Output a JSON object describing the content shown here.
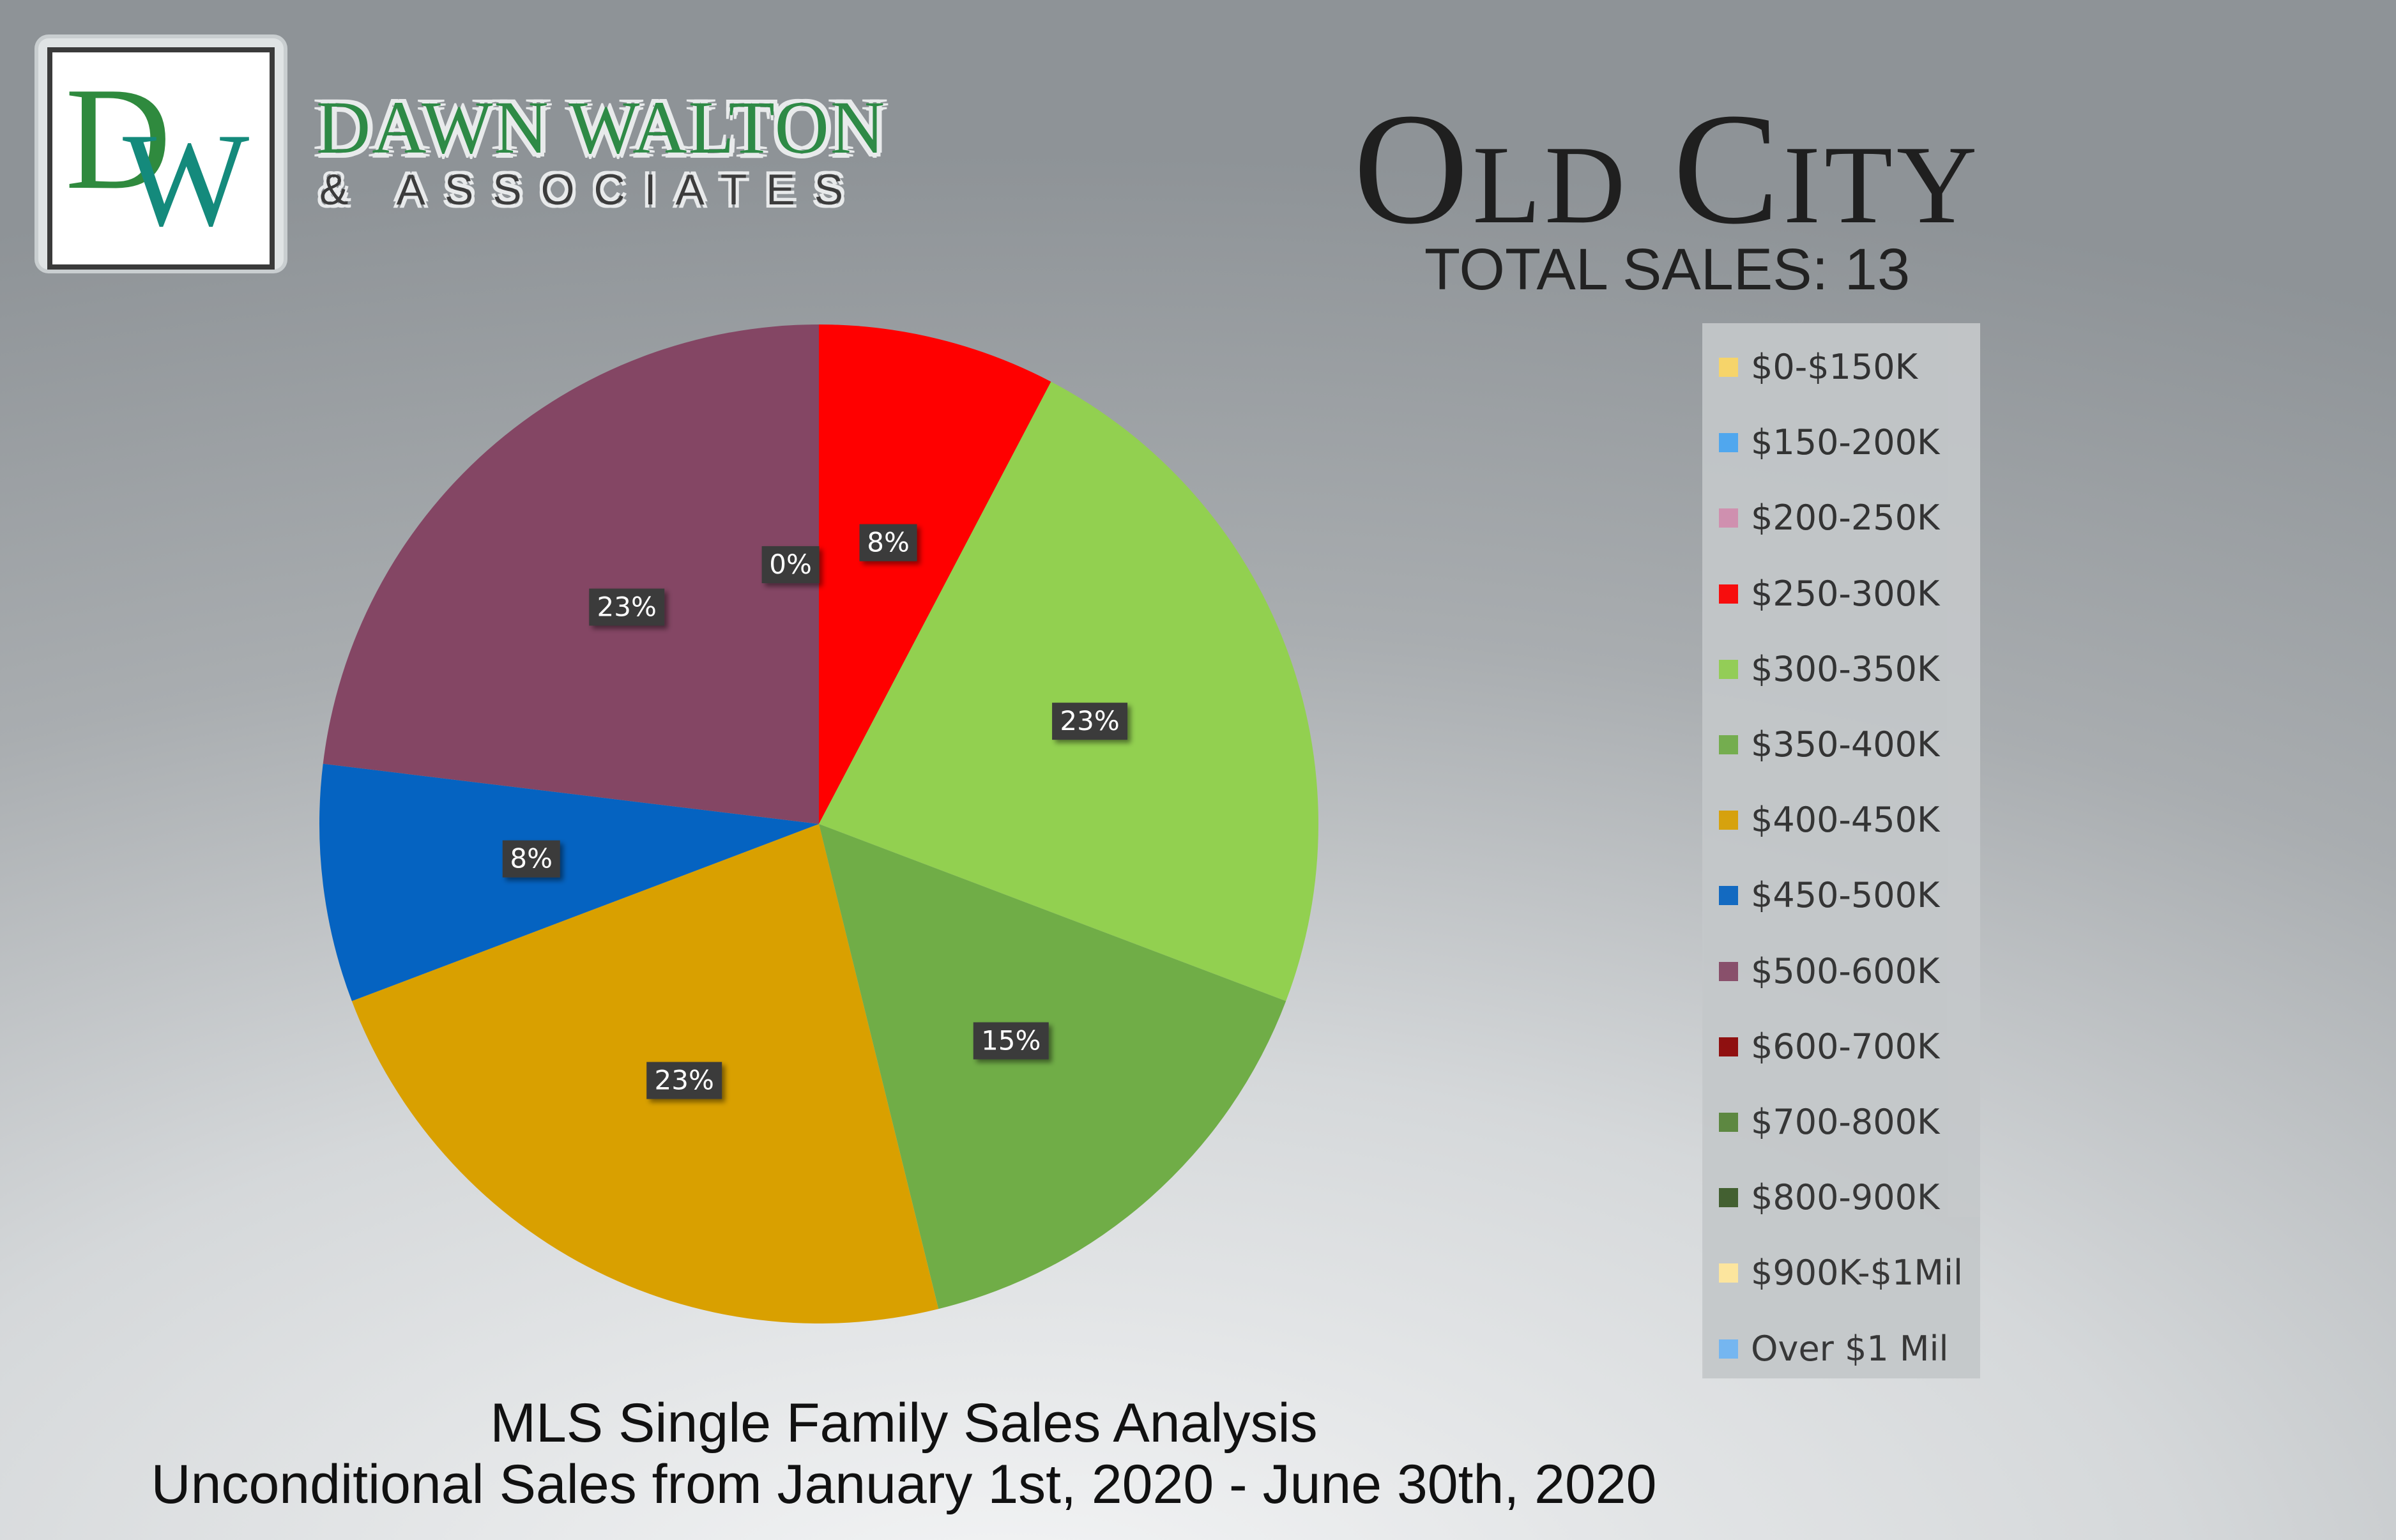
{
  "brand": {
    "logo_letter_1": "D",
    "logo_letter_2": "W",
    "name": "DAWN WALTON",
    "sub": "& ASSOCIATES"
  },
  "header": {
    "title": "Old City",
    "total_sales": "TOTAL SALES: 13"
  },
  "footer": {
    "subtitle": "MLS Single Family Sales Analysis",
    "date_range": "Unconditional Sales from January 1st, 2020 - June 30th, 2020"
  },
  "chart_data": {
    "type": "pie",
    "title": "Old City",
    "categories": [
      "$0-$150K",
      "$150-200K",
      "$200-250K",
      "$250-300K",
      "$300-350K",
      "$350-400K",
      "$400-450K",
      "$450-500K",
      "$500-600K",
      "$600-700K",
      "$700-800K",
      "$800-900K",
      "$900K-$1Mil",
      "Over $1 Mil"
    ],
    "values": [
      0,
      0,
      0,
      1,
      3,
      2,
      3,
      1,
      3,
      0,
      0,
      0,
      0,
      0
    ],
    "percent_labels": [
      "0%",
      "",
      "",
      "8%",
      "23%",
      "15%",
      "23%",
      "8%",
      "23%",
      "",
      "",
      "",
      "",
      ""
    ],
    "colors": [
      "#ffd966",
      "#4aa8f5",
      "#d48fb0",
      "#ff0000",
      "#92d050",
      "#70ad47",
      "#d9a000",
      "#0563c1",
      "#844664",
      "#8b0000",
      "#548235",
      "#375623",
      "#ffe699",
      "#6db3f2"
    ],
    "legend_position": "right"
  }
}
